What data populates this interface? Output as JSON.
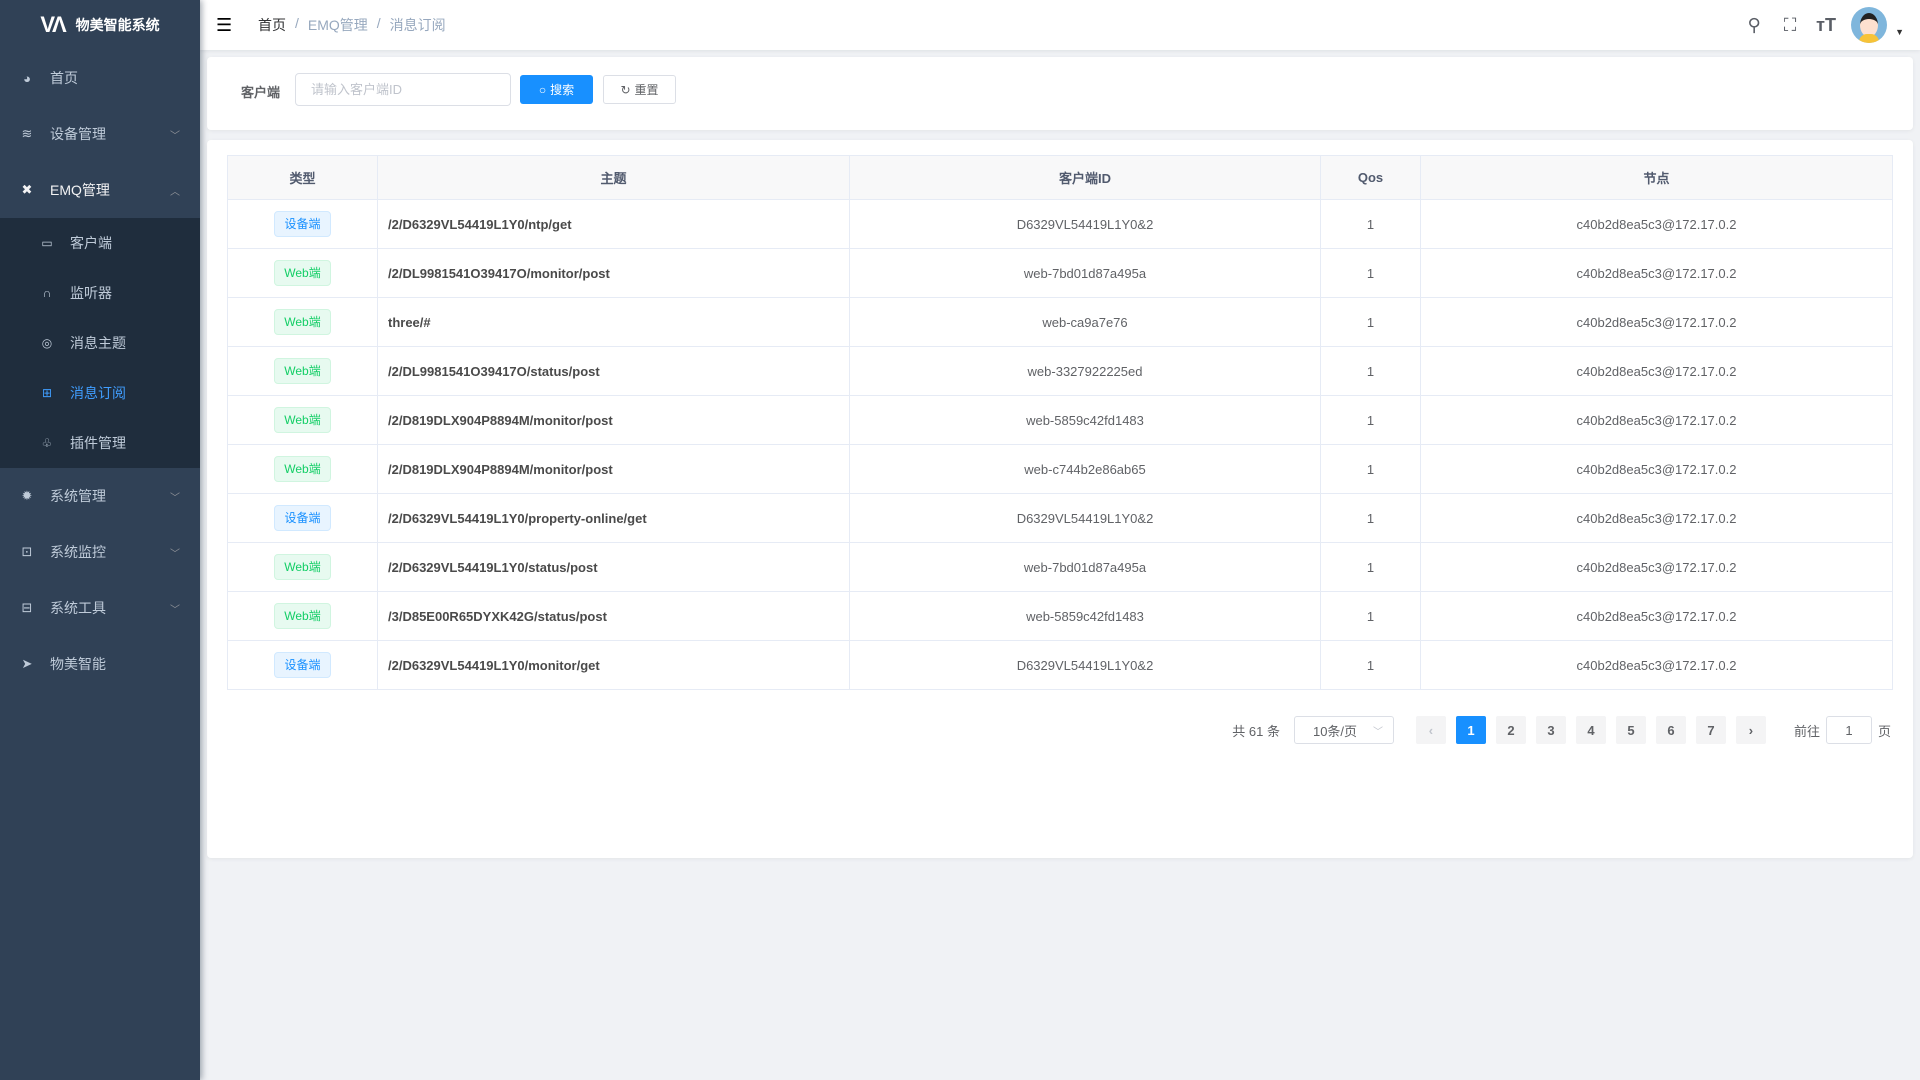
{
  "app": {
    "title": "物美智能系统"
  },
  "sidebar": {
    "items": [
      {
        "label": "首页",
        "icon": "dashboard-icon"
      },
      {
        "label": "设备管理",
        "icon": "device-icon",
        "expandable": true
      },
      {
        "label": "EMQ管理",
        "icon": "emq-icon",
        "expanded": true,
        "children": [
          {
            "label": "客户端",
            "icon": "monitor-icon"
          },
          {
            "label": "监听器",
            "icon": "headset-icon"
          },
          {
            "label": "消息主题",
            "icon": "topic-icon"
          },
          {
            "label": "消息订阅",
            "icon": "subscribe-icon",
            "active": true
          },
          {
            "label": "插件管理",
            "icon": "puzzle-icon"
          }
        ]
      },
      {
        "label": "系统管理",
        "icon": "gear-icon",
        "expandable": true
      },
      {
        "label": "系统监控",
        "icon": "monitor-chart-icon",
        "expandable": true
      },
      {
        "label": "系统工具",
        "icon": "toolbox-icon",
        "expandable": true
      },
      {
        "label": "物美智能",
        "icon": "paper-plane-icon"
      }
    ]
  },
  "breadcrumb": [
    "首页",
    "EMQ管理",
    "消息订阅"
  ],
  "search": {
    "label": "客户端",
    "placeholder": "请输入客户端ID",
    "value": "",
    "search_label": "搜索",
    "reset_label": "重置"
  },
  "table": {
    "headers": [
      "类型",
      "主题",
      "客户端ID",
      "Qos",
      "节点"
    ],
    "rows": [
      {
        "type": "设备端",
        "kind": "dev",
        "topic": "/2/D6329VL54419L1Y0/ntp/get",
        "client": "D6329VL54419L1Y0&2",
        "qos": "1",
        "node": "c40b2d8ea5c3@172.17.0.2"
      },
      {
        "type": "Web端",
        "kind": "web",
        "topic": "/2/DL9981541O39417O/monitor/post",
        "client": "web-7bd01d87a495a",
        "qos": "1",
        "node": "c40b2d8ea5c3@172.17.0.2"
      },
      {
        "type": "Web端",
        "kind": "web",
        "topic": "three/#",
        "client": "web-ca9a7e76",
        "qos": "1",
        "node": "c40b2d8ea5c3@172.17.0.2"
      },
      {
        "type": "Web端",
        "kind": "web",
        "topic": "/2/DL9981541O39417O/status/post",
        "client": "web-3327922225ed",
        "qos": "1",
        "node": "c40b2d8ea5c3@172.17.0.2"
      },
      {
        "type": "Web端",
        "kind": "web",
        "topic": "/2/D819DLX904P8894M/monitor/post",
        "client": "web-5859c42fd1483",
        "qos": "1",
        "node": "c40b2d8ea5c3@172.17.0.2"
      },
      {
        "type": "Web端",
        "kind": "web",
        "topic": "/2/D819DLX904P8894M/monitor/post",
        "client": "web-c744b2e86ab65",
        "qos": "1",
        "node": "c40b2d8ea5c3@172.17.0.2"
      },
      {
        "type": "设备端",
        "kind": "dev",
        "topic": "/2/D6329VL54419L1Y0/property-online/get",
        "client": "D6329VL54419L1Y0&2",
        "qos": "1",
        "node": "c40b2d8ea5c3@172.17.0.2"
      },
      {
        "type": "Web端",
        "kind": "web",
        "topic": "/2/D6329VL54419L1Y0/status/post",
        "client": "web-7bd01d87a495a",
        "qos": "1",
        "node": "c40b2d8ea5c3@172.17.0.2"
      },
      {
        "type": "Web端",
        "kind": "web",
        "topic": "/3/D85E00R65DYXK42G/status/post",
        "client": "web-5859c42fd1483",
        "qos": "1",
        "node": "c40b2d8ea5c3@172.17.0.2"
      },
      {
        "type": "设备端",
        "kind": "dev",
        "topic": "/2/D6329VL54419L1Y0/monitor/get",
        "client": "D6329VL54419L1Y0&2",
        "qos": "1",
        "node": "c40b2d8ea5c3@172.17.0.2"
      }
    ]
  },
  "pagination": {
    "total_text": "共 61 条",
    "page_size": "10条/页",
    "pages": [
      "1",
      "2",
      "3",
      "4",
      "5",
      "6",
      "7"
    ],
    "current": "1",
    "goto_label": "前往",
    "goto_value": "1",
    "page_suffix": "页"
  },
  "colors": {
    "sidebar": "#304156",
    "submenu": "#1f2d3d",
    "accent": "#1890ff",
    "web_tag": "#13ce66"
  }
}
